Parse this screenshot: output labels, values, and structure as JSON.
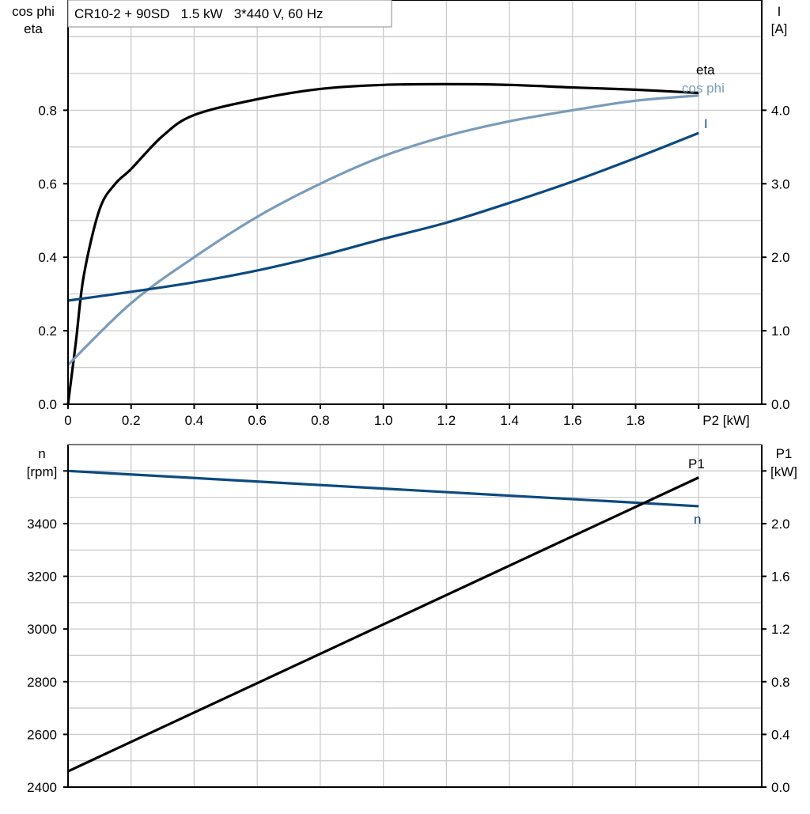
{
  "chart_data": [
    {
      "type": "line",
      "title": "CR10-2 + 90SD   1.5 kW   3*440 V, 60 Hz",
      "xlabel": "P2 [kW]",
      "xlim": [
        0,
        2.2
      ],
      "xticks": [
        "0",
        "0.2",
        "0.4",
        "0.6",
        "0.8",
        "1.0",
        "1.2",
        "1.4",
        "1.6",
        "1.8"
      ],
      "ylabel_left": [
        "cos phi",
        "eta"
      ],
      "ylim_left": [
        0,
        1.1
      ],
      "yticks_left": [
        "0.0",
        "0.2",
        "0.4",
        "0.6",
        "0.8"
      ],
      "ylabel_right": [
        "I",
        "[A]"
      ],
      "ylim_right": [
        0,
        5.5
      ],
      "yticks_right": [
        "0.0",
        "1.0",
        "2.0",
        "3.0",
        "4.0"
      ],
      "grid": true,
      "series": [
        {
          "name": "eta",
          "axis": "left",
          "color": "#000000",
          "x": [
            0,
            0.025,
            0.05,
            0.1,
            0.15,
            0.2,
            0.3,
            0.4,
            0.6,
            0.8,
            1.0,
            1.2,
            1.4,
            1.6,
            1.8,
            2.0
          ],
          "y": [
            0,
            0.17,
            0.35,
            0.53,
            0.6,
            0.64,
            0.73,
            0.787,
            0.83,
            0.858,
            0.869,
            0.871,
            0.869,
            0.862,
            0.856,
            0.847
          ]
        },
        {
          "name": "cos phi",
          "axis": "left",
          "color": "#7a9cbb",
          "x": [
            0,
            0.2,
            0.4,
            0.6,
            0.8,
            1.0,
            1.2,
            1.4,
            1.6,
            1.8,
            2.0
          ],
          "y": [
            0.107,
            0.275,
            0.4,
            0.51,
            0.6,
            0.675,
            0.73,
            0.77,
            0.8,
            0.826,
            0.84
          ]
        },
        {
          "name": "I",
          "axis": "right",
          "color": "#0d4a80",
          "x": [
            0,
            0.2,
            0.4,
            0.6,
            0.8,
            1.0,
            1.2,
            1.4,
            1.6,
            1.8,
            2.0
          ],
          "y": [
            1.41,
            1.53,
            1.66,
            1.82,
            2.02,
            2.25,
            2.47,
            2.74,
            3.03,
            3.35,
            3.69
          ]
        }
      ]
    },
    {
      "type": "line",
      "xlim": [
        0,
        2.2
      ],
      "ylabel_left": [
        "n",
        "[rpm]"
      ],
      "ylim_left": [
        2400,
        3700
      ],
      "yticks_left": [
        "2400",
        "2600",
        "2800",
        "3000",
        "3200",
        "3400"
      ],
      "ylabel_right": [
        "P1",
        "[kW]"
      ],
      "ylim_right": [
        0,
        2.6
      ],
      "yticks_right": [
        "0.0",
        "0.4",
        "0.8",
        "1.2",
        "1.6",
        "2.0"
      ],
      "grid": true,
      "series": [
        {
          "name": "n",
          "axis": "left",
          "color": "#0d4a80",
          "x": [
            0,
            2.0
          ],
          "y": [
            3600,
            3466
          ]
        },
        {
          "name": "P1",
          "axis": "right",
          "color": "#000000",
          "x": [
            0,
            2.0
          ],
          "y": [
            0.12,
            2.35
          ]
        }
      ]
    }
  ]
}
